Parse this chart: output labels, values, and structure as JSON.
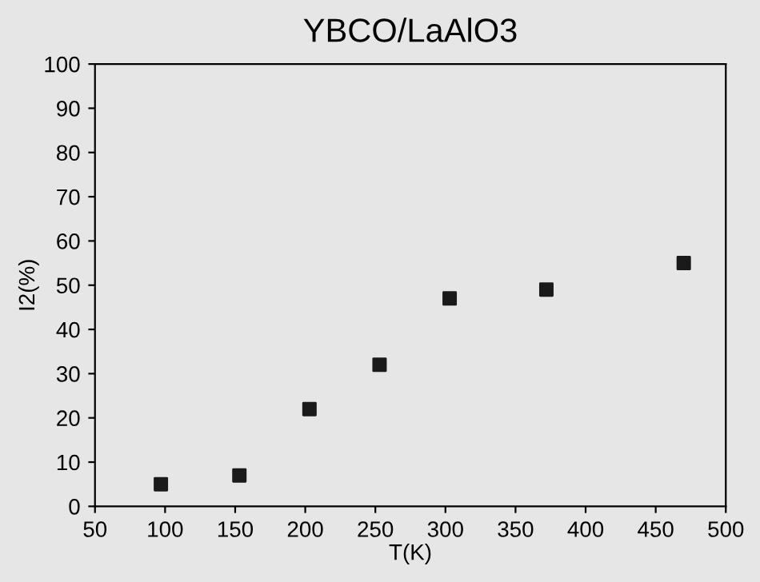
{
  "chart_data": {
    "type": "scatter",
    "title": "YBCO/LaAlO3",
    "xlabel": "T(K)",
    "ylabel": "I2(%)",
    "x": [
      97,
      153,
      203,
      253,
      303,
      372,
      470
    ],
    "series": [
      {
        "color": "#1a1a1a",
        "values": [
          5,
          7,
          22,
          32,
          47,
          49,
          55
        ]
      }
    ],
    "xlim": [
      50,
      500
    ],
    "xticks": [
      50,
      100,
      150,
      200,
      250,
      300,
      350,
      400,
      450,
      500
    ],
    "ylim": [
      0,
      100
    ],
    "yticks": [
      0,
      10,
      20,
      30,
      40,
      50,
      60,
      70,
      80,
      90,
      100
    ],
    "marker": "square",
    "grid": false,
    "legend": false
  }
}
